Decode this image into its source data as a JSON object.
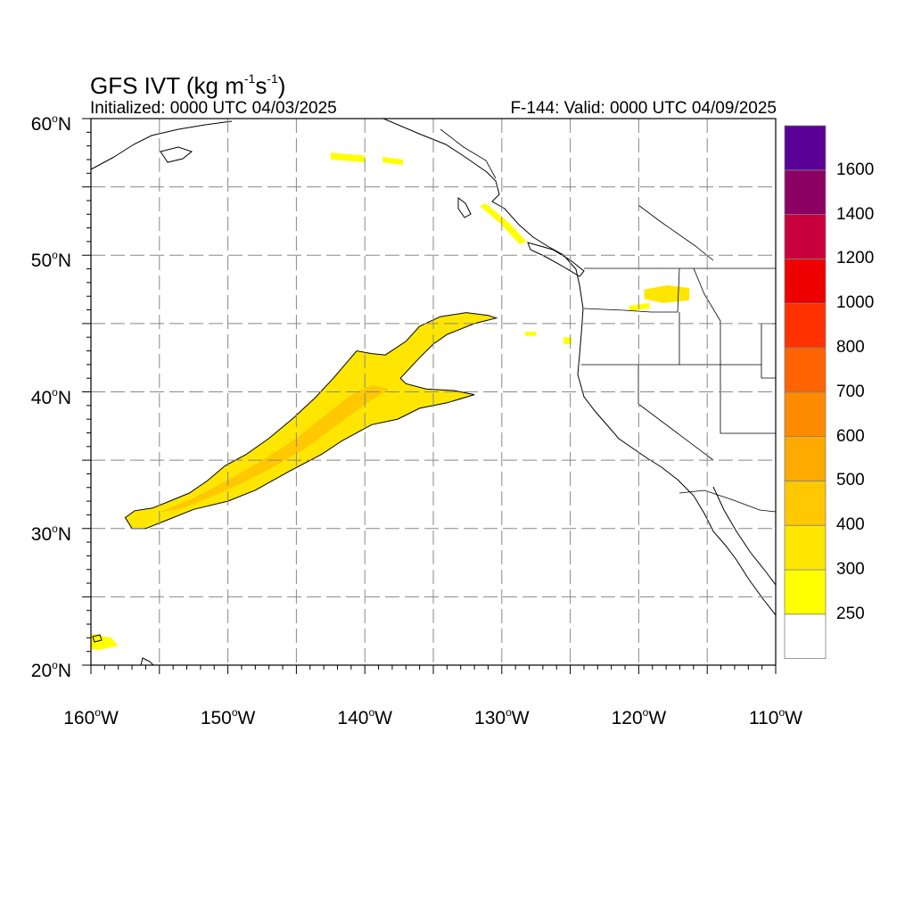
{
  "title": {
    "main": "GFS IVT (kg m",
    "sup1": "-1",
    "mid": "s",
    "sup2": "-1",
    "end": ")",
    "initialized": "Initialized: 0000 UTC 04/03/2025",
    "valid": "F-144: Valid: 0000 UTC 04/09/2025"
  },
  "map": {
    "extent": {
      "lon_min": -160,
      "lon_max": -110,
      "lat_min": 20,
      "lat_max": 60
    },
    "lat_labels": [
      {
        "value": 60,
        "num": "60",
        "deg": "o",
        "hem": "N"
      },
      {
        "value": 50,
        "num": "50",
        "deg": "o",
        "hem": "N"
      },
      {
        "value": 40,
        "num": "40",
        "deg": "o",
        "hem": "N"
      },
      {
        "value": 30,
        "num": "30",
        "deg": "o",
        "hem": "N"
      },
      {
        "value": 20,
        "num": "20",
        "deg": "o",
        "hem": "N"
      }
    ],
    "lon_labels": [
      {
        "value": -160,
        "num": "160",
        "deg": "o",
        "hem": "W"
      },
      {
        "value": -150,
        "num": "150",
        "deg": "o",
        "hem": "W"
      },
      {
        "value": -140,
        "num": "140",
        "deg": "o",
        "hem": "W"
      },
      {
        "value": -130,
        "num": "130",
        "deg": "o",
        "hem": "W"
      },
      {
        "value": -120,
        "num": "120",
        "deg": "o",
        "hem": "W"
      },
      {
        "value": -110,
        "num": "110",
        "deg": "o",
        "hem": "W"
      }
    ],
    "grid": {
      "lon_step": 5,
      "lat_step": 5,
      "style": "dashed",
      "color": "#888888"
    },
    "features": [
      {
        "name": "atmospheric-river-core",
        "level": 300,
        "lonlat": [
          [
            -157.5,
            30.8
          ],
          [
            -156.8,
            31.3
          ],
          [
            -155.5,
            31.5
          ],
          [
            -154.5,
            31.9
          ],
          [
            -152.8,
            32.6
          ],
          [
            -151.5,
            33.5
          ],
          [
            -150.2,
            34.6
          ],
          [
            -148.7,
            35.4
          ],
          [
            -147.0,
            36.6
          ],
          [
            -145.2,
            38.1
          ],
          [
            -143.6,
            39.6
          ],
          [
            -142.3,
            41.0
          ],
          [
            -140.6,
            43.0
          ],
          [
            -139.5,
            42.8
          ],
          [
            -138.5,
            42.7
          ],
          [
            -137.0,
            43.7
          ],
          [
            -136.0,
            44.8
          ],
          [
            -134.5,
            45.5
          ],
          [
            -132.6,
            45.8
          ],
          [
            -131.0,
            45.6
          ],
          [
            -130.4,
            45.4
          ],
          [
            -132.0,
            45.0
          ],
          [
            -134.0,
            44.2
          ],
          [
            -135.0,
            43.5
          ],
          [
            -136.0,
            42.5
          ],
          [
            -137.4,
            41.0
          ],
          [
            -137.0,
            40.6
          ],
          [
            -135.5,
            40.2
          ],
          [
            -133.5,
            40.1
          ],
          [
            -132.0,
            39.8
          ],
          [
            -134.0,
            39.2
          ],
          [
            -136.0,
            38.8
          ],
          [
            -137.6,
            38.0
          ],
          [
            -139.5,
            37.6
          ],
          [
            -141.7,
            36.4
          ],
          [
            -143.2,
            35.4
          ],
          [
            -145.5,
            34.2
          ],
          [
            -148.0,
            32.8
          ],
          [
            -150.0,
            32.0
          ],
          [
            -152.5,
            31.4
          ],
          [
            -154.5,
            30.6
          ],
          [
            -156.0,
            30.0
          ],
          [
            -157.0,
            30.0
          ]
        ]
      },
      {
        "name": "atmospheric-river-inner",
        "level": 400,
        "lonlat": [
          [
            -155.0,
            31.2
          ],
          [
            -153.0,
            32.0
          ],
          [
            -151.0,
            33.0
          ],
          [
            -149.0,
            34.1
          ],
          [
            -147.0,
            35.3
          ],
          [
            -145.0,
            36.6
          ],
          [
            -143.0,
            38.2
          ],
          [
            -141.0,
            39.8
          ],
          [
            -139.4,
            40.5
          ],
          [
            -138.2,
            40.2
          ],
          [
            -139.8,
            39.2
          ],
          [
            -142.0,
            37.6
          ],
          [
            -144.0,
            36.1
          ],
          [
            -146.5,
            34.6
          ],
          [
            -149.0,
            33.3
          ],
          [
            -151.5,
            32.2
          ],
          [
            -153.5,
            31.4
          ]
        ]
      },
      {
        "name": "ivt-patch-alaska-1",
        "level": 250,
        "lonlat": [
          [
            -142.5,
            57.5
          ],
          [
            -140.0,
            57.3
          ],
          [
            -140.0,
            56.8
          ],
          [
            -142.5,
            57.0
          ]
        ]
      },
      {
        "name": "ivt-patch-alaska-2",
        "level": 250,
        "lonlat": [
          [
            -138.7,
            57.2
          ],
          [
            -137.2,
            57.0
          ],
          [
            -137.2,
            56.6
          ],
          [
            -138.7,
            56.8
          ]
        ]
      },
      {
        "name": "ivt-patch-bc-coast",
        "level": 250,
        "lonlat": [
          [
            -131.2,
            53.8
          ],
          [
            -129.5,
            52.4
          ],
          [
            -128.2,
            51.0
          ],
          [
            -128.7,
            50.8
          ],
          [
            -130.2,
            52.4
          ],
          [
            -131.6,
            53.6
          ]
        ]
      },
      {
        "name": "ivt-patch-idaho",
        "level": 300,
        "lonlat": [
          [
            -119.6,
            47.5
          ],
          [
            -117.9,
            47.8
          ],
          [
            -116.3,
            47.6
          ],
          [
            -116.3,
            46.7
          ],
          [
            -118.2,
            46.5
          ],
          [
            -119.6,
            46.8
          ]
        ]
      },
      {
        "name": "ivt-patch-oregon",
        "level": 250,
        "lonlat": [
          [
            -120.7,
            46.3
          ],
          [
            -119.2,
            46.5
          ],
          [
            -119.2,
            46.1
          ],
          [
            -120.7,
            45.9
          ]
        ]
      },
      {
        "name": "ivt-patch-offshore-1",
        "level": 250,
        "lonlat": [
          [
            -125.5,
            44.0
          ],
          [
            -124.9,
            44.0
          ],
          [
            -124.9,
            43.5
          ],
          [
            -125.5,
            43.5
          ]
        ]
      },
      {
        "name": "ivt-patch-offshore-2",
        "level": 250,
        "lonlat": [
          [
            -128.3,
            44.4
          ],
          [
            -127.5,
            44.4
          ],
          [
            -127.5,
            44.1
          ],
          [
            -128.3,
            44.1
          ]
        ]
      },
      {
        "name": "ivt-patch-hawaii",
        "level": 250,
        "lonlat": [
          [
            -160.0,
            22.3
          ],
          [
            -158.5,
            22.0
          ],
          [
            -158.0,
            21.4
          ],
          [
            -159.5,
            21.1
          ],
          [
            -160.0,
            21.2
          ]
        ]
      }
    ]
  },
  "colorbar": {
    "colors": [
      "#ffffff",
      "#ffff00",
      "#ffe600",
      "#ffc800",
      "#ffaa00",
      "#ff8c00",
      "#ff6400",
      "#ff3200",
      "#ee0000",
      "#c8003c",
      "#8c0064",
      "#5a0096"
    ],
    "labels": [
      "250",
      "300",
      "400",
      "500",
      "600",
      "700",
      "800",
      "1000",
      "1200",
      "1400",
      "1600"
    ]
  }
}
